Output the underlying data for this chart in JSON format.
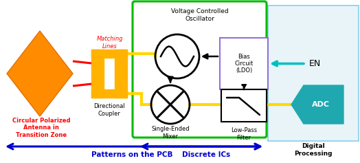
{
  "bg_color": "#ffffff",
  "gold": "#FFB300",
  "gold_wire": "#FFD700",
  "red": "#FF0000",
  "green_border": "#00BB00",
  "purple_border": "#9370DB",
  "light_blue_box": "#E8F4F8",
  "light_blue_border": "#87CEEB",
  "adc_color": "#20A8B0",
  "blue_label": "#0000CD",
  "cyan_arrow": "#00BFBF",
  "antenna_face": "#FF8C00",
  "antenna_edge": "#E07000",
  "vco_text": "Voltage Controlled\nOscillator",
  "mixer_text": "Single-Ended\nMixer",
  "bias_text": "Bias\nCircuit\n(LDO)",
  "lpf_text": "Low-Pass\nFilter",
  "dir_coupler_text": "Directional\nCoupler",
  "antenna_text": "Circular Polarized\nAntenna in\nTransition Zone",
  "matching_text": "Matching\nLines",
  "en_text": "EN",
  "adc_text": "ADC",
  "digital_text": "Digital\nProcessing",
  "pcb_text": "Patterns on the PCB",
  "discrete_text": "Discrete ICs"
}
